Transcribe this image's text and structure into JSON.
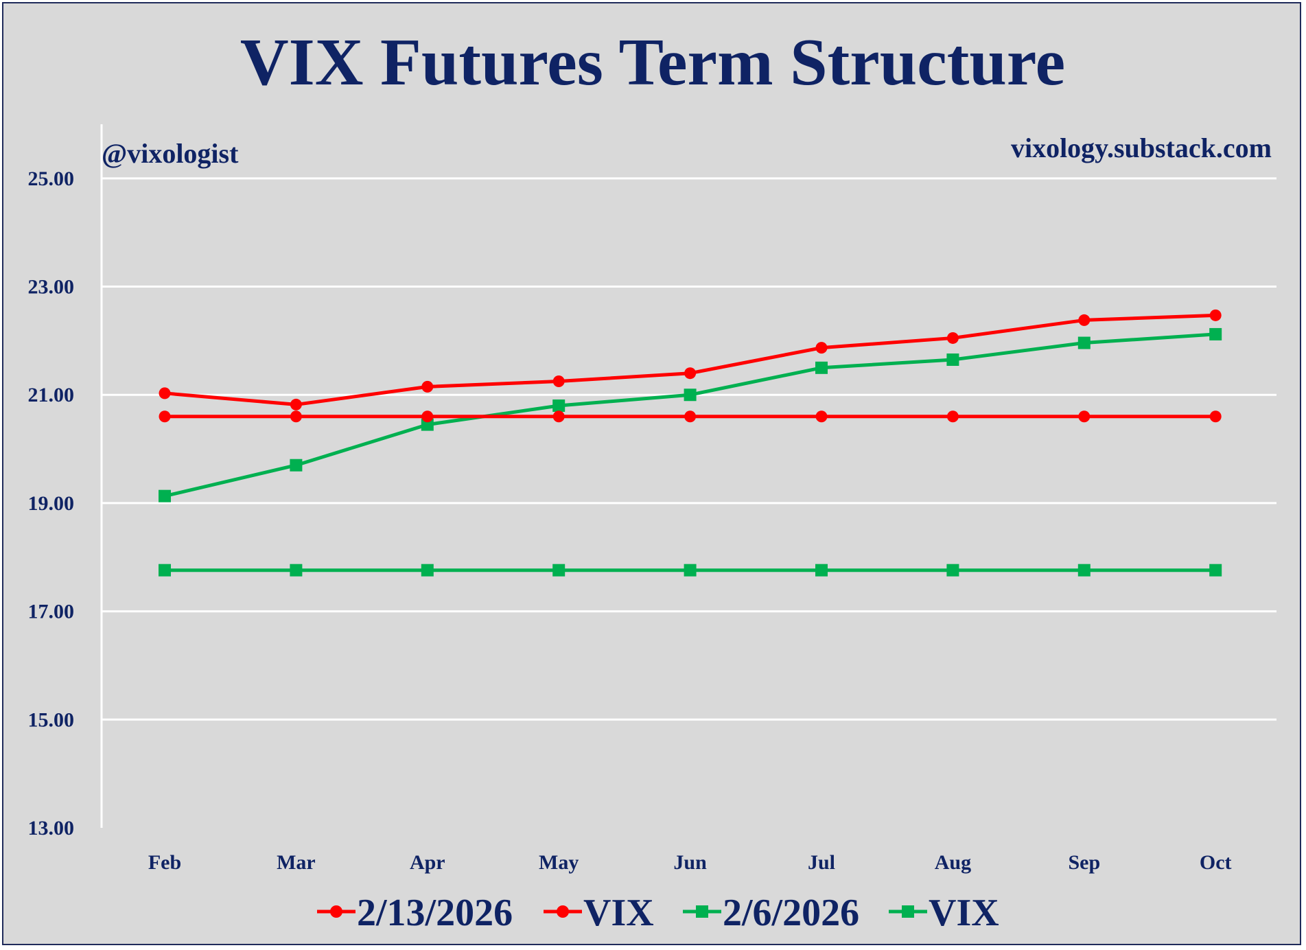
{
  "chart_data": {
    "type": "line",
    "title": "VIX Futures Term Structure",
    "watermark_left": "@vixologist",
    "watermark_right": "vixology.substack.com",
    "categories": [
      "Feb",
      "Mar",
      "Apr",
      "May",
      "Jun",
      "Jul",
      "Aug",
      "Sep",
      "Oct"
    ],
    "ylim": [
      13,
      26
    ],
    "yticks": [
      "13.00",
      "15.00",
      "17.00",
      "19.00",
      "21.00",
      "23.00",
      "25.00"
    ],
    "grid": true,
    "legend_position": "bottom",
    "series": [
      {
        "name": "2/13/2026",
        "color": "#ff0000",
        "marker": "circle",
        "values": [
          21.03,
          20.82,
          21.15,
          21.25,
          21.4,
          21.87,
          22.05,
          22.38,
          22.47
        ]
      },
      {
        "name": "VIX",
        "color": "#ff0000",
        "marker": "circle",
        "values": [
          20.6,
          20.6,
          20.6,
          20.6,
          20.6,
          20.6,
          20.6,
          20.6,
          20.6
        ]
      },
      {
        "name": "2/6/2026",
        "color": "#00b050",
        "marker": "square",
        "values": [
          19.13,
          19.7,
          20.45,
          20.8,
          21.0,
          21.5,
          21.65,
          21.96,
          22.12
        ]
      },
      {
        "name": "VIX",
        "color": "#00b050",
        "marker": "square",
        "values": [
          17.76,
          17.76,
          17.76,
          17.76,
          17.76,
          17.76,
          17.76,
          17.76,
          17.76
        ]
      }
    ]
  }
}
